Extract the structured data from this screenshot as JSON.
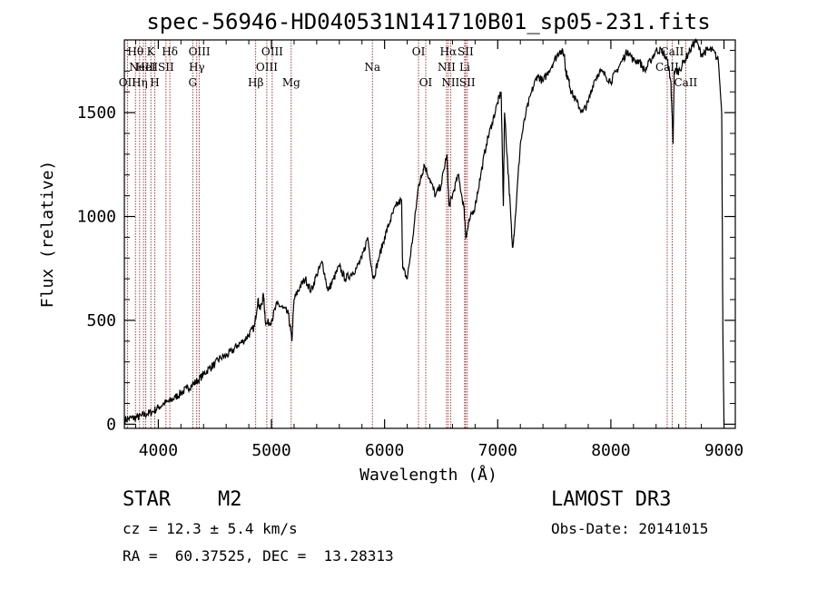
{
  "chart_data": {
    "type": "line",
    "title": "spec-56946-HD040531N141710B01_sp05-231.fits",
    "xlabel": "Wavelength (Å)",
    "ylabel": "Flux (relative)",
    "xlim": [
      3700,
      9100
    ],
    "ylim": [
      -20,
      1850
    ],
    "x_ticks": [
      {
        "value": 4000,
        "label": "4000"
      },
      {
        "value": 5000,
        "label": "5000"
      },
      {
        "value": 6000,
        "label": "6000"
      },
      {
        "value": 7000,
        "label": "7000"
      },
      {
        "value": 8000,
        "label": "8000"
      },
      {
        "value": 9000,
        "label": "9000"
      }
    ],
    "y_ticks": [
      {
        "value": 0,
        "label": "0"
      },
      {
        "value": 500,
        "label": "500"
      },
      {
        "value": 1000,
        "label": "1000"
      },
      {
        "value": 1500,
        "label": "1500"
      }
    ],
    "series": [
      {
        "name": "spectrum",
        "x": [
          3700,
          3760,
          3800,
          3850,
          3900,
          3950,
          4000,
          4050,
          4100,
          4150,
          4200,
          4250,
          4300,
          4350,
          4400,
          4450,
          4500,
          4550,
          4600,
          4650,
          4700,
          4750,
          4800,
          4850,
          4880,
          4900,
          4930,
          4950,
          5000,
          5050,
          5100,
          5150,
          5180,
          5200,
          5250,
          5300,
          5350,
          5400,
          5450,
          5500,
          5550,
          5600,
          5650,
          5700,
          5750,
          5800,
          5850,
          5900,
          5950,
          6000,
          6050,
          6100,
          6150,
          6160,
          6200,
          6250,
          6300,
          6330,
          6350,
          6400,
          6450,
          6500,
          6550,
          6570,
          6600,
          6650,
          6700,
          6720,
          6750,
          6800,
          6850,
          6900,
          6950,
          7000,
          7030,
          7050,
          7060,
          7100,
          7130,
          7150,
          7200,
          7250,
          7300,
          7350,
          7400,
          7450,
          7500,
          7550,
          7590,
          7600,
          7630,
          7650,
          7700,
          7750,
          7800,
          7850,
          7900,
          7950,
          8000,
          8050,
          8100,
          8150,
          8200,
          8250,
          8300,
          8350,
          8400,
          8450,
          8500,
          8530,
          8540,
          8550,
          8560,
          8600,
          8650,
          8700,
          8750,
          8800,
          8850,
          8900,
          8950,
          8980,
          8990,
          9000
        ],
        "values": [
          20,
          30,
          30,
          40,
          50,
          60,
          80,
          100,
          110,
          130,
          150,
          170,
          190,
          210,
          240,
          270,
          290,
          320,
          330,
          350,
          380,
          400,
          430,
          470,
          600,
          550,
          620,
          480,
          500,
          580,
          560,
          530,
          400,
          600,
          660,
          700,
          640,
          720,
          780,
          640,
          700,
          760,
          700,
          720,
          750,
          800,
          900,
          700,
          800,
          900,
          980,
          1050,
          1080,
          750,
          700,
          900,
          1150,
          1200,
          1250,
          1180,
          1100,
          1150,
          1300,
          1050,
          1100,
          1200,
          1050,
          900,
          980,
          1050,
          1200,
          1350,
          1450,
          1550,
          1600,
          1050,
          1500,
          1150,
          850,
          950,
          1350,
          1500,
          1600,
          1680,
          1650,
          1700,
          1750,
          1800,
          1780,
          1700,
          1650,
          1600,
          1550,
          1500,
          1550,
          1650,
          1700,
          1680,
          1650,
          1700,
          1750,
          1800,
          1750,
          1750,
          1700,
          1750,
          1800,
          1800,
          1750,
          1650,
          1500,
          1350,
          1700,
          1700,
          1750,
          1800,
          1850,
          1780,
          1800,
          1800,
          1750,
          1500,
          450,
          5
        ]
      }
    ],
    "reference_lines": [
      {
        "wavelength": 3727,
        "label": "OII",
        "row": 2
      },
      {
        "wavelength": 3798,
        "label": "Hθ",
        "row": 0
      },
      {
        "wavelength": 3835,
        "label": "Hη",
        "row": 2
      },
      {
        "wavelength": 3869,
        "label": "NeIII",
        "row": 1
      },
      {
        "wavelength": 3889,
        "label": "HeI",
        "row": 1
      },
      {
        "wavelength": 3934,
        "label": "K",
        "row": 0
      },
      {
        "wavelength": 3969,
        "label": "H",
        "row": 2
      },
      {
        "wavelength": 4068,
        "label": "SII",
        "row": 1
      },
      {
        "wavelength": 4102,
        "label": "Hδ",
        "row": 0
      },
      {
        "wavelength": 4304,
        "label": "G",
        "row": 2
      },
      {
        "wavelength": 4340,
        "label": "Hγ",
        "row": 1
      },
      {
        "wavelength": 4363,
        "label": "OIII",
        "row": 0
      },
      {
        "wavelength": 4861,
        "label": "Hβ",
        "row": 2
      },
      {
        "wavelength": 4959,
        "label": "OIII",
        "row": 1
      },
      {
        "wavelength": 5007,
        "label": "OIII",
        "row": 0
      },
      {
        "wavelength": 5175,
        "label": "Mg",
        "row": 2
      },
      {
        "wavelength": 5892,
        "label": "Na",
        "row": 1
      },
      {
        "wavelength": 6300,
        "label": "OI",
        "row": 0
      },
      {
        "wavelength": 6364,
        "label": "OI",
        "row": 2
      },
      {
        "wavelength": 6548,
        "label": "NII",
        "row": 1
      },
      {
        "wavelength": 6563,
        "label": "Hα",
        "row": 0
      },
      {
        "wavelength": 6583,
        "label": "NII",
        "row": 2
      },
      {
        "wavelength": 6708,
        "label": "Li",
        "row": 1
      },
      {
        "wavelength": 6716,
        "label": "SII",
        "row": 0
      },
      {
        "wavelength": 6731,
        "label": "SII",
        "row": 2
      },
      {
        "wavelength": 8498,
        "label": "CaII",
        "row": 1
      },
      {
        "wavelength": 8542,
        "label": "CaII",
        "row": 0
      },
      {
        "wavelength": 8662,
        "label": "CaII",
        "row": 2
      }
    ]
  },
  "info": {
    "object_class": "STAR",
    "subclass": "M2",
    "survey": "LAMOST DR3",
    "redshift": "cz = 12.3 ± 5.4 km/s",
    "obs_date": "Obs-Date: 20141015",
    "coords": "RA =  60.37525, DEC =  13.28313"
  },
  "colors": {
    "spectrum": "#000000",
    "reference_line": "#b40000",
    "axis": "#000000"
  }
}
